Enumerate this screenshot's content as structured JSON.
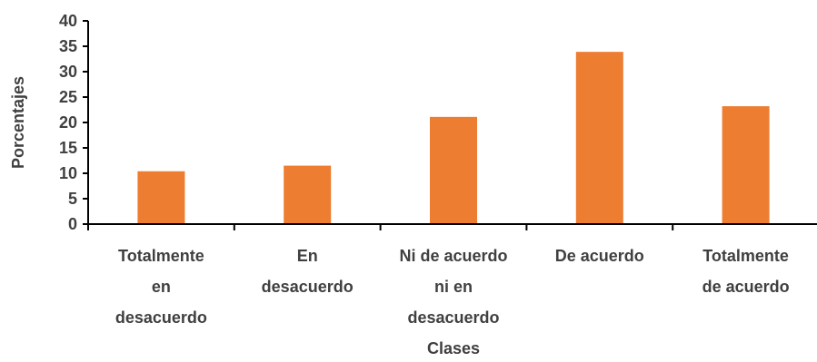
{
  "chart_data": {
    "type": "bar",
    "categories": [
      [
        "Totalmente",
        "en",
        "desacuerdo"
      ],
      [
        "En",
        "desacuerdo"
      ],
      [
        "Ni de acuerdo",
        "ni en",
        "desacuerdo"
      ],
      [
        "De acuerdo"
      ],
      [
        "Totalmente",
        "de acuerdo"
      ]
    ],
    "values": [
      10.4,
      11.5,
      21.1,
      33.9,
      23.2
    ],
    "xlabel": "Clases",
    "ylabel": "Porcentajes",
    "ylim": [
      0,
      40
    ],
    "yticks": [
      "0",
      "5",
      "10",
      "15",
      "20",
      "25",
      "30",
      "35",
      "40"
    ],
    "grid": false,
    "legend": "none",
    "bar_color": "#ED7D31",
    "axis_color": "#000000",
    "text_color": "#404040"
  }
}
